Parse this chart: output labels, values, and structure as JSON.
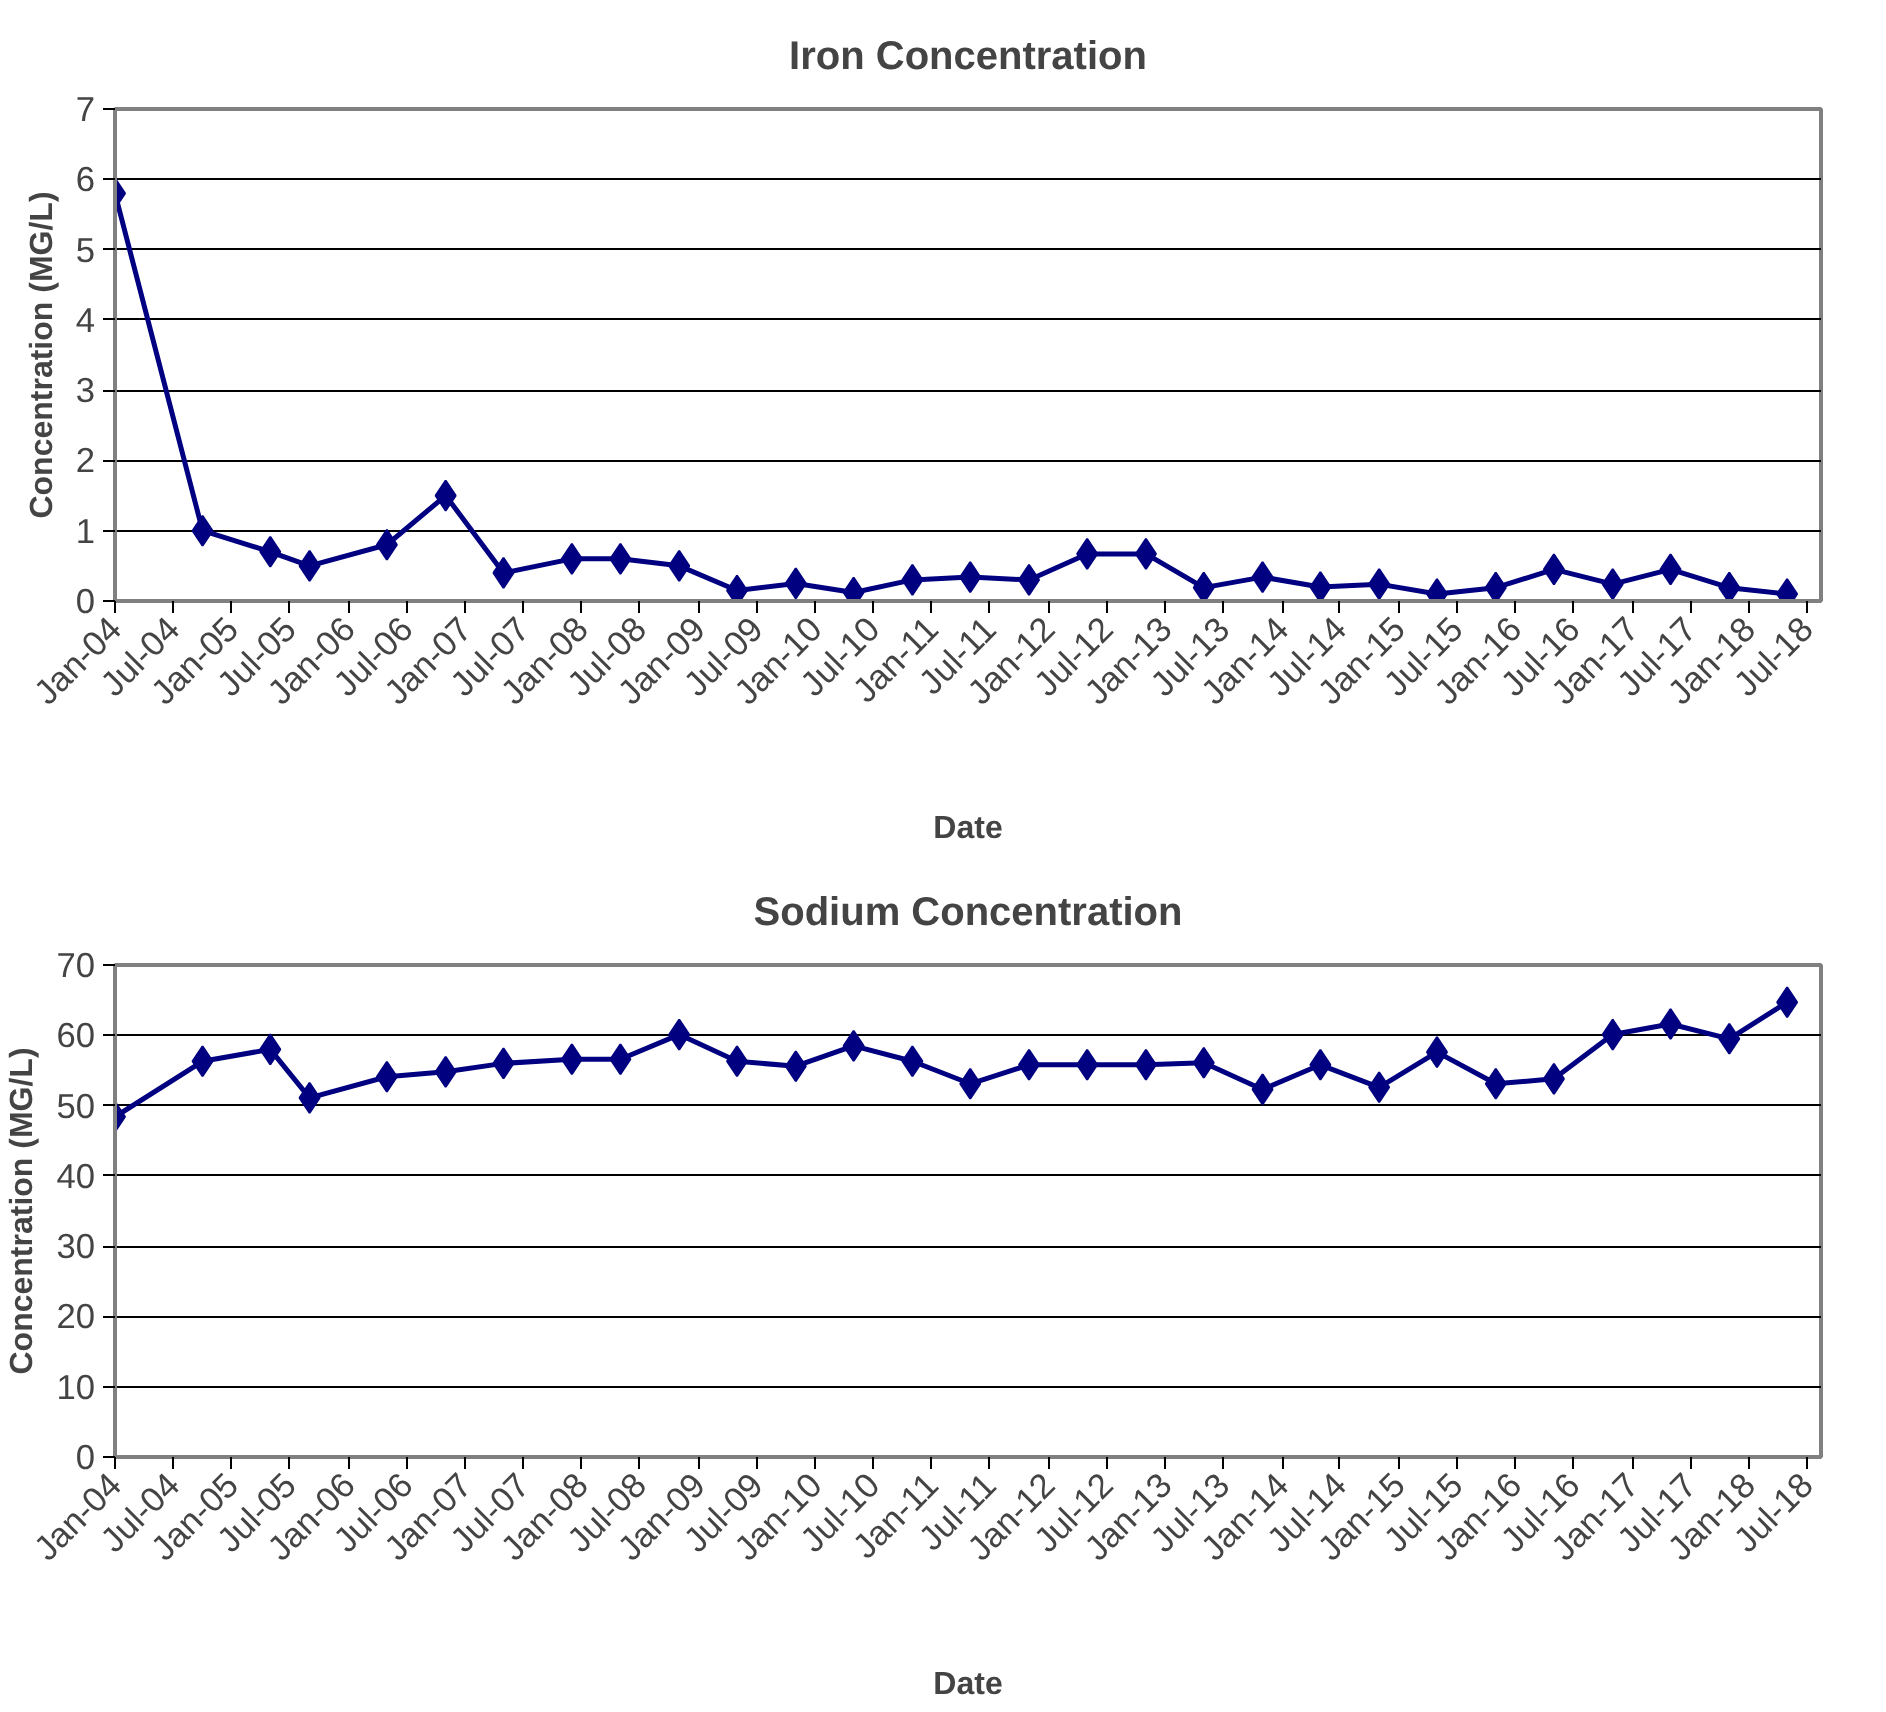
{
  "chart_data": [
    {
      "type": "line",
      "title": "Iron Concentration",
      "xlabel": "Date",
      "ylabel": "Concentration (MG/L)",
      "x": [
        "2004-01",
        "2004-10",
        "2005-05",
        "2005-09",
        "2006-05",
        "2006-11",
        "2007-05",
        "2007-12",
        "2008-05",
        "2008-11",
        "2009-05",
        "2009-11",
        "2010-05",
        "2010-11",
        "2011-05",
        "2011-11",
        "2012-05",
        "2012-11",
        "2013-05",
        "2013-11",
        "2014-05",
        "2014-11",
        "2015-05",
        "2015-11",
        "2016-05",
        "2016-11",
        "2017-05",
        "2017-11",
        "2018-05"
      ],
      "series": [
        {
          "color": "#000080",
          "values": [
            5.8,
            1.0,
            0.7,
            0.5,
            0.8,
            1.5,
            0.4,
            0.6,
            0.6,
            0.5,
            0.15,
            0.25,
            0.12,
            0.3,
            0.34,
            0.3,
            0.67,
            0.67,
            0.19,
            0.34,
            0.2,
            0.24,
            0.1,
            0.19,
            0.45,
            0.24,
            0.45,
            0.19,
            0.1
          ]
        }
      ],
      "xlim": [
        "2004-01",
        "2018-08-15"
      ],
      "xticks": [
        {
          "value": "2004-01",
          "label": "Jan-04"
        },
        {
          "value": "2004-07",
          "label": "Jul-04"
        },
        {
          "value": "2005-01",
          "label": "Jan-05"
        },
        {
          "value": "2005-07",
          "label": "Jul-05"
        },
        {
          "value": "2006-01",
          "label": "Jan-06"
        },
        {
          "value": "2006-07",
          "label": "Jul-06"
        },
        {
          "value": "2007-01",
          "label": "Jan-07"
        },
        {
          "value": "2007-07",
          "label": "Jul-07"
        },
        {
          "value": "2008-01",
          "label": "Jan-08"
        },
        {
          "value": "2008-07",
          "label": "Jul-08"
        },
        {
          "value": "2009-01",
          "label": "Jan-09"
        },
        {
          "value": "2009-07",
          "label": "Jul-09"
        },
        {
          "value": "2010-01",
          "label": "Jan-10"
        },
        {
          "value": "2010-07",
          "label": "Jul-10"
        },
        {
          "value": "2011-01",
          "label": "Jan-11"
        },
        {
          "value": "2011-07",
          "label": "Jul-11"
        },
        {
          "value": "2012-01",
          "label": "Jan-12"
        },
        {
          "value": "2012-07",
          "label": "Jul-12"
        },
        {
          "value": "2013-01",
          "label": "Jan-13"
        },
        {
          "value": "2013-07",
          "label": "Jul-13"
        },
        {
          "value": "2014-01",
          "label": "Jan-14"
        },
        {
          "value": "2014-07",
          "label": "Jul-14"
        },
        {
          "value": "2015-01",
          "label": "Jan-15"
        },
        {
          "value": "2015-07",
          "label": "Jul-15"
        },
        {
          "value": "2016-01",
          "label": "Jan-16"
        },
        {
          "value": "2016-07",
          "label": "Jul-16"
        },
        {
          "value": "2017-01",
          "label": "Jan-17"
        },
        {
          "value": "2017-07",
          "label": "Jul-17"
        },
        {
          "value": "2018-01",
          "label": "Jan-18"
        },
        {
          "value": "2018-07",
          "label": "Jul-18"
        }
      ],
      "ylim": [
        0,
        7
      ],
      "yticks": [
        0,
        1,
        2,
        3,
        4,
        5,
        6,
        7
      ],
      "grid": "y",
      "marker": "diamond",
      "line_style": "solid"
    },
    {
      "type": "line",
      "title": "Sodium Concentration",
      "xlabel": "Date",
      "ylabel": "Concentration (MG/L)",
      "x": [
        "2004-01",
        "2004-10",
        "2005-05",
        "2005-09",
        "2006-05",
        "2006-11",
        "2007-05",
        "2007-12",
        "2008-05",
        "2008-11",
        "2009-05",
        "2009-11",
        "2010-05",
        "2010-11",
        "2011-05",
        "2011-11",
        "2012-05",
        "2012-11",
        "2013-05",
        "2013-11",
        "2014-05",
        "2014-11",
        "2015-05",
        "2015-11",
        "2016-05",
        "2016-11",
        "2017-05",
        "2017-11",
        "2018-05"
      ],
      "series": [
        {
          "color": "#000080",
          "values": [
            48.4,
            56.3,
            58.0,
            51.1,
            54.1,
            54.8,
            56.0,
            56.6,
            56.6,
            60.1,
            56.3,
            55.6,
            58.5,
            56.3,
            53.1,
            55.8,
            55.8,
            55.8,
            56.1,
            52.3,
            55.8,
            52.6,
            57.6,
            53.1,
            53.8,
            60.1,
            61.6,
            59.5,
            64.7
          ]
        }
      ],
      "xlim": [
        "2004-01",
        "2018-08-15"
      ],
      "xticks": [
        {
          "value": "2004-01",
          "label": "Jan-04"
        },
        {
          "value": "2004-07",
          "label": "Jul-04"
        },
        {
          "value": "2005-01",
          "label": "Jan-05"
        },
        {
          "value": "2005-07",
          "label": "Jul-05"
        },
        {
          "value": "2006-01",
          "label": "Jan-06"
        },
        {
          "value": "2006-07",
          "label": "Jul-06"
        },
        {
          "value": "2007-01",
          "label": "Jan-07"
        },
        {
          "value": "2007-07",
          "label": "Jul-07"
        },
        {
          "value": "2008-01",
          "label": "Jan-08"
        },
        {
          "value": "2008-07",
          "label": "Jul-08"
        },
        {
          "value": "2009-01",
          "label": "Jan-09"
        },
        {
          "value": "2009-07",
          "label": "Jul-09"
        },
        {
          "value": "2010-01",
          "label": "Jan-10"
        },
        {
          "value": "2010-07",
          "label": "Jul-10"
        },
        {
          "value": "2011-01",
          "label": "Jan-11"
        },
        {
          "value": "2011-07",
          "label": "Jul-11"
        },
        {
          "value": "2012-01",
          "label": "Jan-12"
        },
        {
          "value": "2012-07",
          "label": "Jul-12"
        },
        {
          "value": "2013-01",
          "label": "Jan-13"
        },
        {
          "value": "2013-07",
          "label": "Jul-13"
        },
        {
          "value": "2014-01",
          "label": "Jan-14"
        },
        {
          "value": "2014-07",
          "label": "Jul-14"
        },
        {
          "value": "2015-01",
          "label": "Jan-15"
        },
        {
          "value": "2015-07",
          "label": "Jul-15"
        },
        {
          "value": "2016-01",
          "label": "Jan-16"
        },
        {
          "value": "2016-07",
          "label": "Jul-16"
        },
        {
          "value": "2017-01",
          "label": "Jan-17"
        },
        {
          "value": "2017-07",
          "label": "Jul-17"
        },
        {
          "value": "2018-01",
          "label": "Jan-18"
        },
        {
          "value": "2018-07",
          "label": "Jul-18"
        }
      ],
      "ylim": [
        0,
        70
      ],
      "yticks": [
        0,
        10,
        20,
        30,
        40,
        50,
        60,
        70
      ],
      "grid": "y",
      "marker": "diamond",
      "line_style": "solid"
    }
  ]
}
